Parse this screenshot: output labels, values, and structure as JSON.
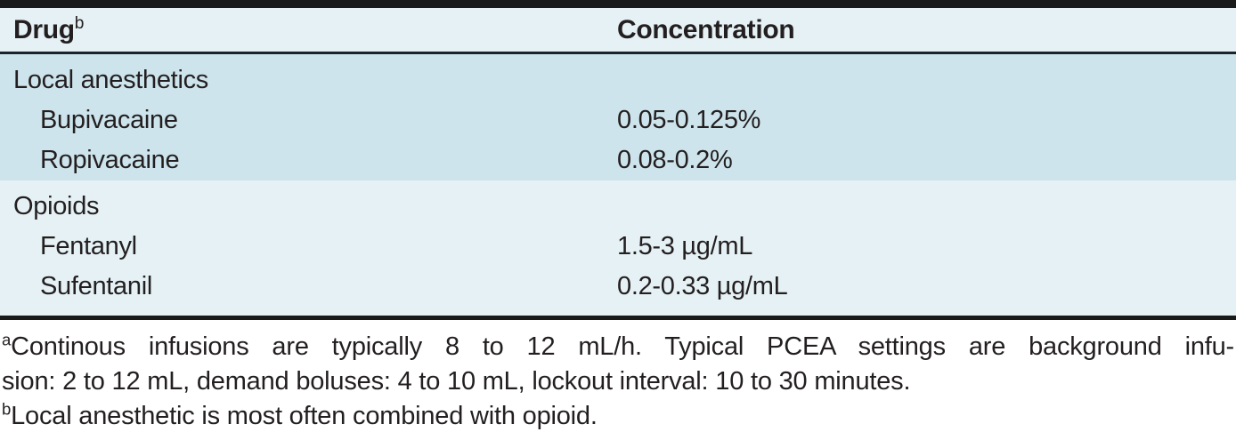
{
  "table": {
    "columns": [
      {
        "label": "Drug",
        "sup": "b"
      },
      {
        "label": "Concentration"
      }
    ],
    "sections": [
      {
        "name": "Local anesthetics",
        "rows": [
          {
            "drug": "Bupivacaine",
            "concentration": "0.05-0.125%"
          },
          {
            "drug": "Ropivacaine",
            "concentration": "0.08-0.2%"
          }
        ]
      },
      {
        "name": "Opioids",
        "rows": [
          {
            "drug": "Fentanyl",
            "concentration": "1.5-3 µg/mL"
          },
          {
            "drug": "Sufentanil",
            "concentration": "0.2-0.33 µg/mL"
          }
        ]
      }
    ]
  },
  "footnotes": [
    {
      "sup": "a",
      "line1": "Continous infusions are typically 8 to 12 mL/h. Typical PCEA settings are background infu-",
      "line2": "sion: 2 to 12 mL, demand boluses: 4 to 10 mL, lockout interval: 10 to 30 minutes."
    },
    {
      "sup": "b",
      "line1": "Local anesthetic is most often combined with opioid."
    }
  ],
  "colors": {
    "section_shade_dark": "#cde4ec",
    "section_shade_light": "#e5f1f5",
    "rule_black": "#1a1a1a",
    "text": "#231f20"
  }
}
